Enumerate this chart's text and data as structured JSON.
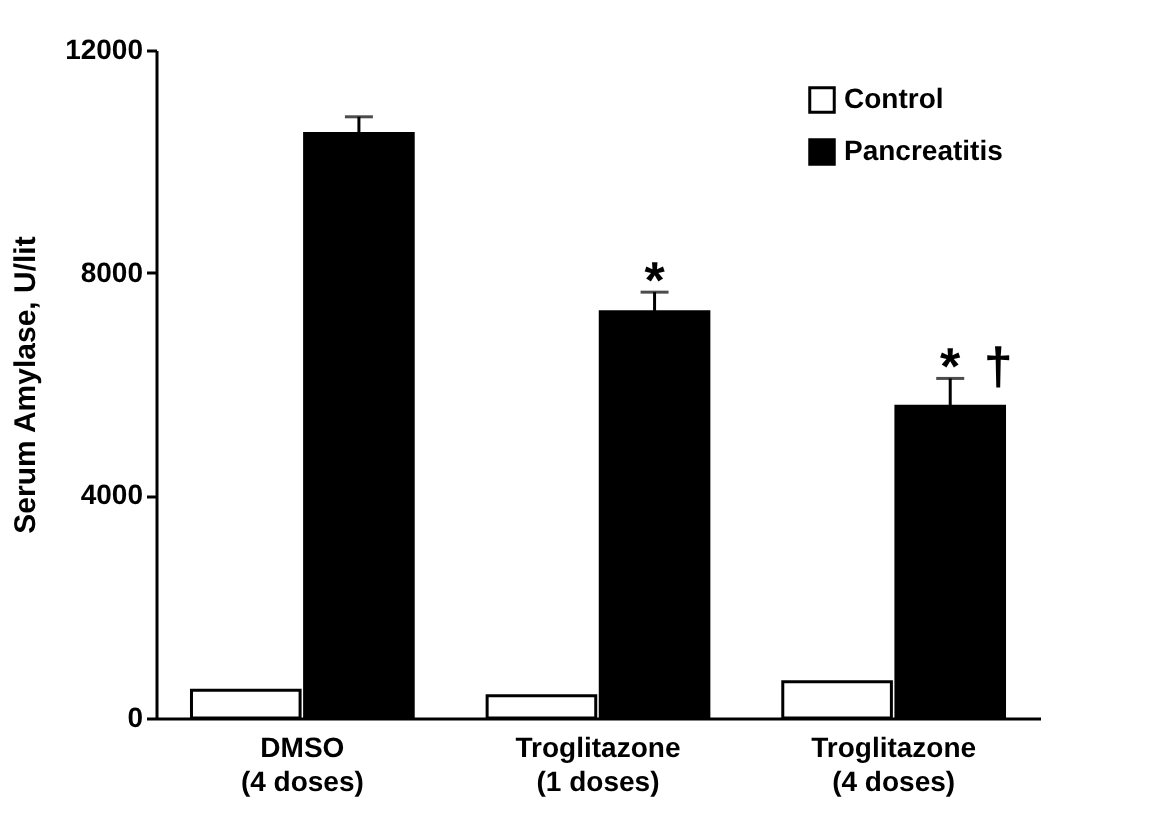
{
  "chart_data": {
    "type": "bar",
    "ylabel": "Serum Amylase, U/lit",
    "categories": [
      "DMSO\n(4 doses)",
      "Troglitazone\n(1 doses)",
      "Troglitazone\n(4 doses)"
    ],
    "series": [
      {
        "name": "Control",
        "color": "#ffffff",
        "values": [
          500,
          400,
          650
        ]
      },
      {
        "name": "Pancreatitis",
        "color": "#000000",
        "values": [
          10500,
          7300,
          5600
        ],
        "errors": [
          300,
          350,
          500
        ]
      }
    ],
    "ylim": [
      0,
      12000
    ],
    "yticks": [
      0,
      4000,
      8000,
      12000
    ],
    "grid": false,
    "legend": "top right",
    "annotations": [
      "*",
      "*",
      "†"
    ]
  }
}
